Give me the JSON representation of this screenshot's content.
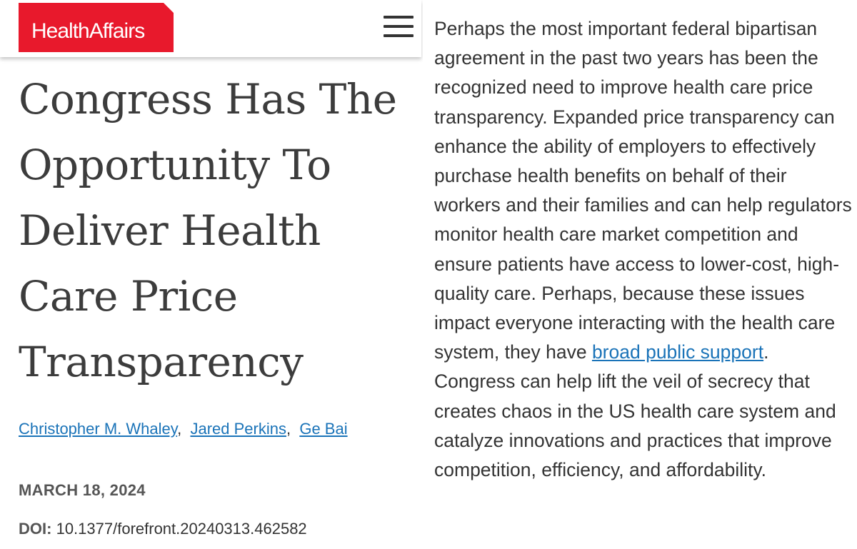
{
  "header": {
    "logo_text": "HealthAffairs",
    "menu_icon": "hamburger-menu-icon"
  },
  "article": {
    "title": "Congress Has The Opportunity To Deliver Health Care Price Transparency",
    "authors": [
      "Christopher M. Whaley",
      "Jared Perkins",
      "Ge Bai"
    ],
    "author_separator": ",",
    "date": "MARCH 18, 2024",
    "doi_label": "DOI:",
    "doi_value": "10.1377/forefront.20240313.462582"
  },
  "body": {
    "text_before_link": "Perhaps the most important federal bipartisan agreement in the past two years has been the recognized need to improve health care price transparency. Expanded price transparency can enhance the ability of employers to effectively purchase health benefits on behalf of their workers and their families and can help regulators monitor health care market competition and ensure patients have access to lower-cost, high-quality care. Perhaps, because these issues impact everyone interacting with the health care system, they have ",
    "link_text": "broad public support",
    "text_after_link": ". Congress can help lift the veil of secrecy that creates chaos in the US health care system and catalyze innovations and practices that improve competition, efficiency, and affordability."
  },
  "colors": {
    "brand_red": "#e8192c",
    "link_blue": "#1a73b8",
    "text_dark": "#333333"
  }
}
